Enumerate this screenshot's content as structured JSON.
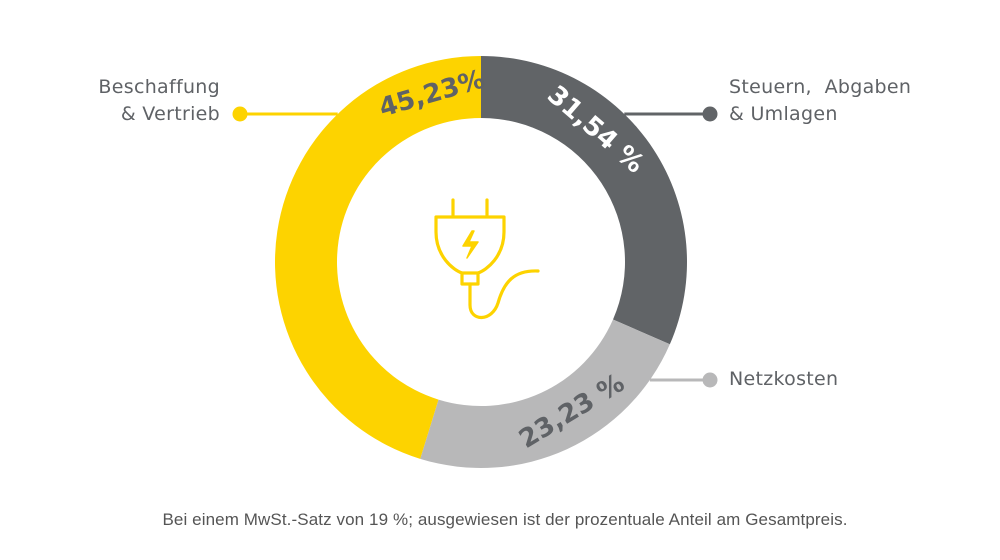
{
  "chart_data": {
    "type": "pie",
    "variant": "donut",
    "title": "",
    "start_angle": "12 o'clock",
    "direction": "clockwise",
    "series": [
      {
        "key": "dark",
        "name": "Steuern, Abgaben & Umlagen",
        "name_lines": [
          "Steuern,  Abgaben",
          "& Umlagen"
        ],
        "value": 31.54,
        "label": "31,54 %",
        "color": "#616467",
        "label_color": "#ffffff"
      },
      {
        "key": "light",
        "name": "Netzkosten",
        "name_lines": [
          "Netzkosten"
        ],
        "value": 23.23,
        "label": "23,23 %",
        "color": "#b8b8b9",
        "label_color": "#5f6266"
      },
      {
        "key": "yellow",
        "name": "Beschaffung & Vertrieb",
        "name_lines": [
          "Beschaffung",
          "& Vertrieb"
        ],
        "value": 45.23,
        "label": "45,23%",
        "color": "#fdd300",
        "label_color": "#5f6266"
      }
    ],
    "center_icon": "power-plug-icon",
    "center_icon_color": "#fdd300",
    "footnote": "Bei einem MwSt.-Satz von 19 %; ausgewiesen ist der prozentuale Anteil am Gesamtpreis."
  }
}
